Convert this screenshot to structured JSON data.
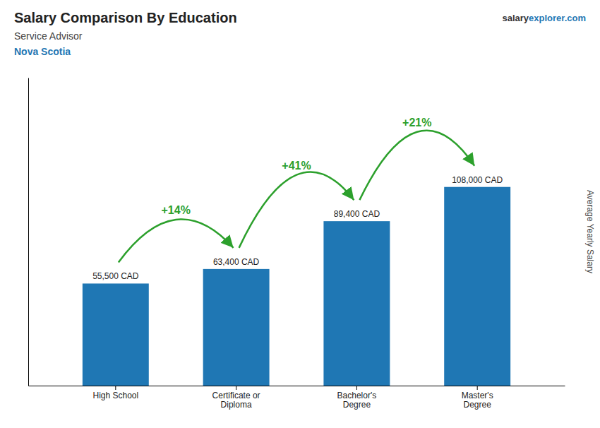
{
  "chart_data": {
    "type": "bar",
    "title": "Salary Comparison By Education",
    "subtitle": "Service Advisor",
    "ylabel": "Average Yearly Salary",
    "categories": [
      "High School",
      "Certificate or\nDiploma",
      "Bachelor's\nDegree",
      "Master's\nDegree"
    ],
    "values": [
      55500,
      63400,
      89400,
      108000
    ],
    "value_labels": [
      "55,500 CAD",
      "63,400 CAD",
      "89,400 CAD",
      "108,000 CAD"
    ],
    "data_labels": true,
    "ylim": [
      0,
      167400
    ],
    "tick_labels": "x",
    "annotations": [
      {
        "text": "Nova Scotia"
      },
      {
        "text": "salary"
      },
      {
        "text": "explorer"
      },
      {
        "text": ".com"
      },
      {
        "text": "+14%",
        "from": 0,
        "to": 1
      },
      {
        "text": "+41%",
        "from": 1,
        "to": 2
      },
      {
        "text": "+21%",
        "from": 2,
        "to": 3
      }
    ]
  }
}
